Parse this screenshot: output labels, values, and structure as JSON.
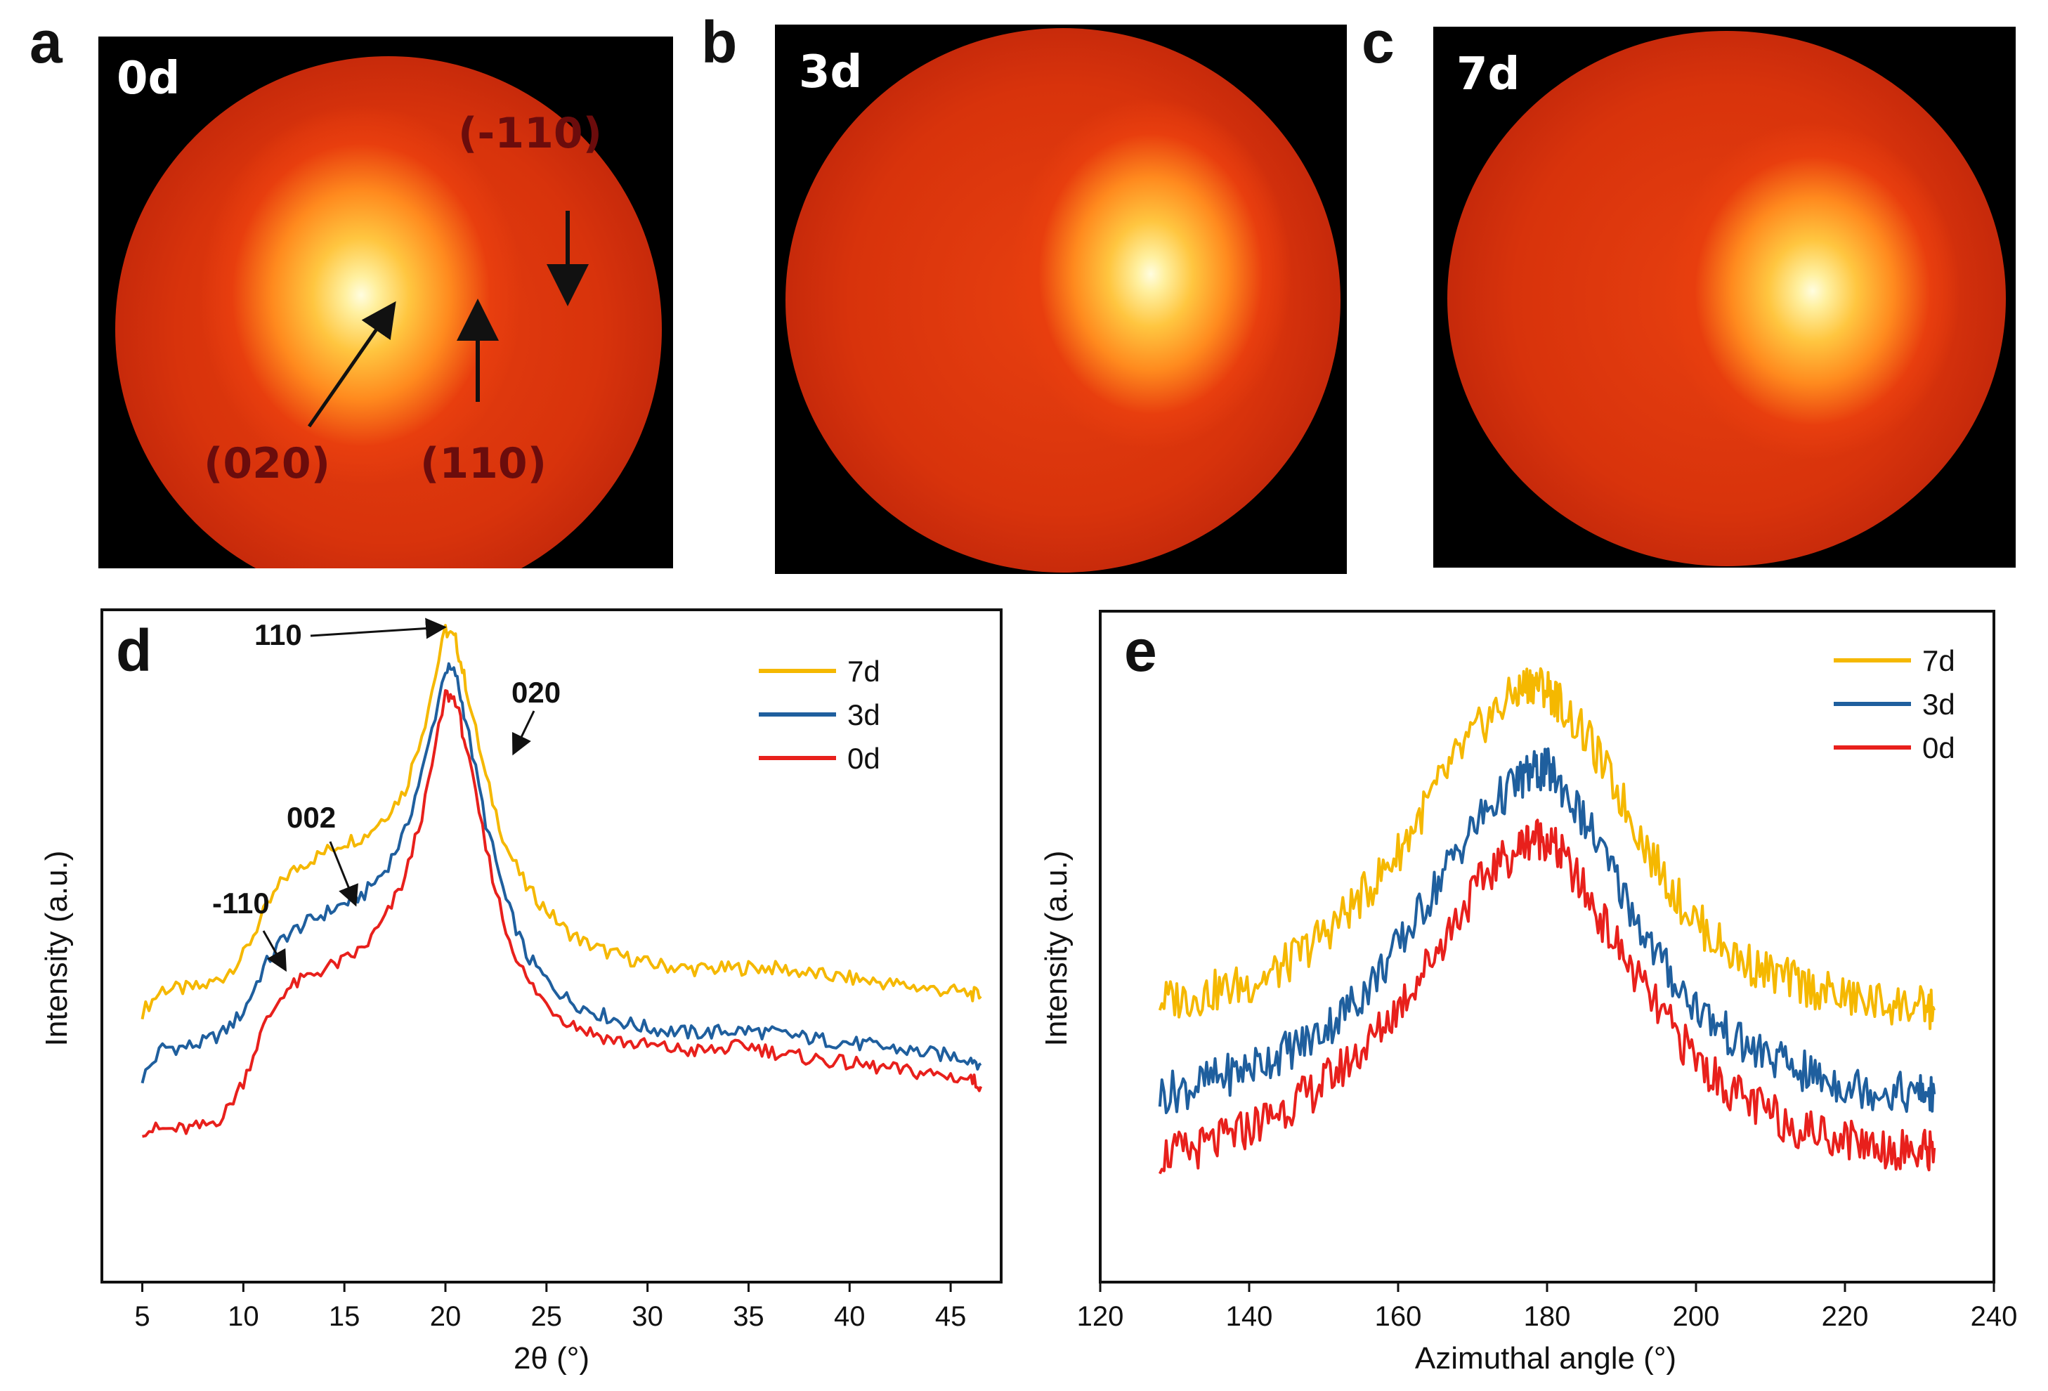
{
  "panels": {
    "a": {
      "letter": "a",
      "day": "0d",
      "annotations": {
        "m110": "(-110)",
        "p020": "(020)",
        "p110": "(110)"
      }
    },
    "b": {
      "letter": "b",
      "day": "3d"
    },
    "c": {
      "letter": "c",
      "day": "7d"
    },
    "d": {
      "letter": "d"
    },
    "e": {
      "letter": "e"
    }
  },
  "chart_data": [
    {
      "id": "d",
      "type": "line",
      "title": "",
      "xlabel": "2θ (°)",
      "ylabel": "Intensity (a.u.)",
      "xlim": [
        3,
        47.5
      ],
      "ylim": [
        0,
        100
      ],
      "xticks": [
        5,
        10,
        15,
        20,
        25,
        30,
        35,
        40,
        45
      ],
      "x": [
        5,
        6,
        7,
        8,
        9,
        10,
        11,
        12,
        13,
        14,
        15,
        16,
        17,
        18,
        19,
        20,
        20.5,
        21,
        22,
        23,
        24,
        25,
        26,
        27,
        28,
        29,
        30,
        31,
        32,
        33,
        34,
        35,
        36,
        37,
        38,
        39,
        40,
        41,
        42,
        43,
        44,
        45,
        46,
        46.5
      ],
      "series": [
        {
          "name": "7d",
          "color": "#f5b800",
          "values": [
            40.2,
            43.6,
            43.6,
            43.9,
            45.4,
            48.6,
            54.8,
            60.1,
            62.3,
            63.9,
            65.5,
            66.3,
            69.3,
            73.1,
            83.4,
            97.0,
            95.5,
            89.0,
            75.0,
            64.8,
            58.8,
            55.4,
            52.2,
            50.3,
            49.1,
            48.2,
            47.4,
            47.0,
            46.6,
            46.6,
            46.6,
            46.8,
            46.8,
            46.4,
            45.9,
            45.5,
            45.2,
            44.8,
            44.4,
            44.0,
            43.6,
            43.3,
            42.9,
            42.5
          ]
        },
        {
          "name": "3d",
          "color": "#1f5f9e",
          "values": [
            30.3,
            34.9,
            34.9,
            35.6,
            37.1,
            40.2,
            46.7,
            51.3,
            53.2,
            54.8,
            56.3,
            57.8,
            61.2,
            66.9,
            77.6,
            91.3,
            90.5,
            83.7,
            68.4,
            56.7,
            48.7,
            44.9,
            42.2,
            40.6,
            39.5,
            38.5,
            37.8,
            37.4,
            37.1,
            37.1,
            37.4,
            37.4,
            37.1,
            36.7,
            36.3,
            35.9,
            35.6,
            35.2,
            34.8,
            34.4,
            34.0,
            33.7,
            33.3,
            32.5
          ]
        },
        {
          "name": "0d",
          "color": "#e8201c",
          "values": [
            22.7,
            22.7,
            22.7,
            23.1,
            24.6,
            29.9,
            37.9,
            43.2,
            45.1,
            46.6,
            47.8,
            49.8,
            54.0,
            60.1,
            71.5,
            87.4,
            86.7,
            79.9,
            64.6,
            52.2,
            45.1,
            41.3,
            38.9,
            37.4,
            36.3,
            35.6,
            35.2,
            34.8,
            34.4,
            34.4,
            34.8,
            35.2,
            34.4,
            33.7,
            33.3,
            32.9,
            32.5,
            32.1,
            31.7,
            31.3,
            31.0,
            30.6,
            30.2,
            29.1
          ]
        }
      ],
      "peak_labels": [
        "110",
        "020",
        "002",
        "-110"
      ]
    },
    {
      "id": "e",
      "type": "line",
      "title": "",
      "xlabel": "Azimuthal angle (°)",
      "ylabel": "Intensity (a.u.)",
      "xlim": [
        120,
        240
      ],
      "ylim": [
        0,
        100
      ],
      "xticks": [
        120,
        140,
        160,
        180,
        200,
        220,
        240
      ],
      "x": [
        128,
        132,
        136,
        140,
        144,
        148,
        152,
        156,
        160,
        164,
        168,
        172,
        176,
        178,
        180,
        182,
        186,
        190,
        194,
        198,
        202,
        206,
        210,
        214,
        218,
        222,
        226,
        230,
        232
      ],
      "series": [
        {
          "name": "7d",
          "color": "#f5b800",
          "values": [
            42.0,
            42.5,
            43.5,
            44.5,
            46.5,
            50.0,
            54.0,
            58.5,
            64.0,
            71.5,
            78.5,
            84.0,
            88.0,
            89.5,
            88.5,
            86.0,
            80.0,
            72.0,
            63.5,
            56.5,
            51.5,
            48.0,
            46.0,
            44.5,
            43.0,
            42.0,
            41.5,
            41.0,
            40.5
          ]
        },
        {
          "name": "3d",
          "color": "#1f5f9e",
          "values": [
            28.0,
            29.0,
            30.5,
            32.0,
            34.0,
            36.0,
            39.5,
            44.0,
            50.0,
            57.0,
            64.5,
            70.5,
            74.5,
            76.0,
            76.5,
            74.0,
            67.0,
            58.5,
            50.0,
            43.5,
            39.0,
            35.5,
            33.5,
            31.5,
            30.0,
            29.0,
            28.5,
            28.0,
            28.0
          ]
        },
        {
          "name": "0d",
          "color": "#e8201c",
          "values": [
            19.0,
            19.5,
            21.0,
            23.0,
            25.5,
            28.0,
            31.5,
            35.5,
            41.0,
            47.5,
            54.5,
            61.0,
            64.5,
            66.5,
            66.0,
            63.5,
            56.5,
            49.0,
            42.0,
            36.0,
            31.0,
            27.5,
            25.0,
            23.0,
            22.0,
            21.0,
            20.0,
            19.5,
            20.0
          ]
        }
      ]
    }
  ]
}
